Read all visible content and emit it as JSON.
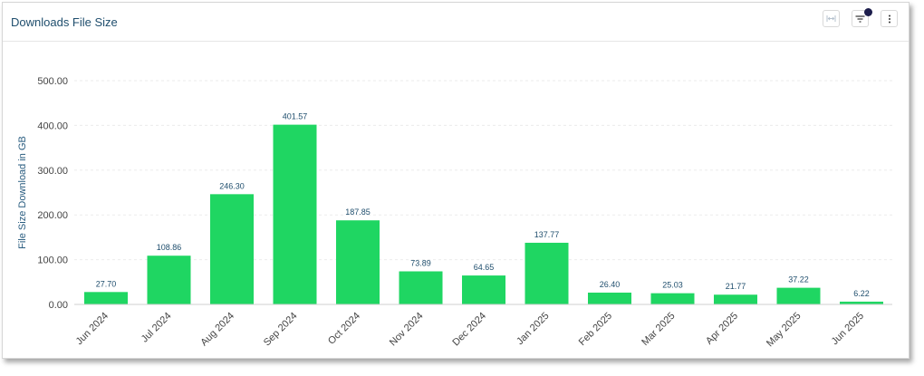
{
  "widget": {
    "title": "Downloads File Size"
  },
  "toolbar": {
    "icons": [
      "fit-width-icon",
      "filter-lines-icon",
      "more-vertical-icon"
    ],
    "badge_color": "#1c1d4b"
  },
  "chart_data": {
    "type": "bar",
    "categories": [
      "Jun 2024",
      "Jul 2024",
      "Aug 2024",
      "Sep 2024",
      "Oct 2024",
      "Nov 2024",
      "Dec 2024",
      "Jan 2025",
      "Feb 2025",
      "Mar 2025",
      "Apr 2025",
      "May 2025",
      "Jun 2025"
    ],
    "values": [
      27.7,
      108.86,
      246.3,
      401.57,
      187.85,
      73.89,
      64.65,
      137.77,
      26.4,
      25.03,
      21.77,
      37.22,
      6.22
    ],
    "value_labels": [
      "27.70",
      "108.86",
      "246.30",
      "401.57",
      "187.85",
      "73.89",
      "64.65",
      "137.77",
      "26.40",
      "25.03",
      "21.77",
      "37.22",
      "6.22"
    ],
    "ylabel": "File Size Download in GB",
    "xlabel": "",
    "ylim": [
      0,
      500
    ],
    "yticks": [
      "0.00",
      "100.00",
      "200.00",
      "300.00",
      "400.00",
      "500.00"
    ],
    "grid": true,
    "bar_color": "#1fd662"
  }
}
